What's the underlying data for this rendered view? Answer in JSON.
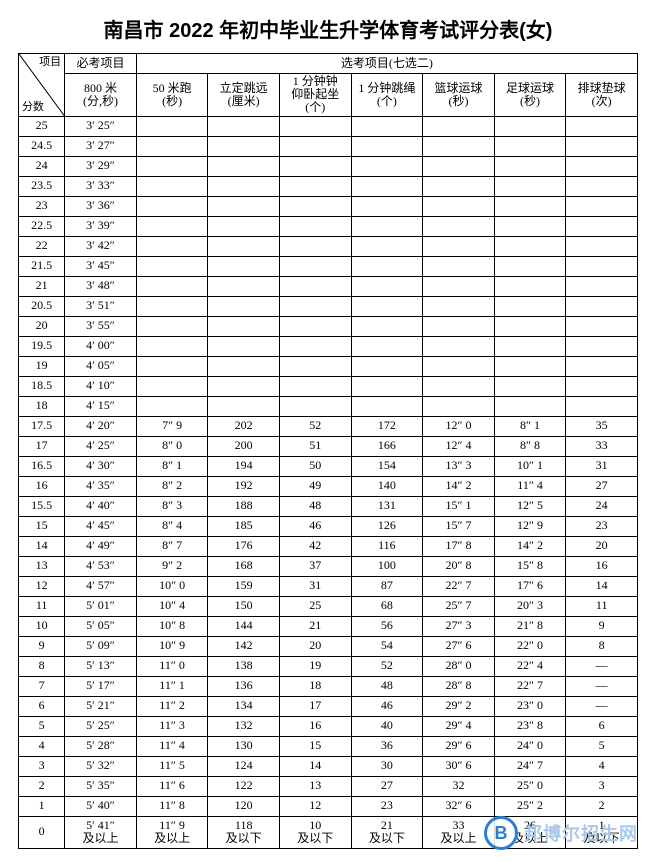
{
  "title": "南昌市 2022 年初中毕业生升学体育考试评分表(女)",
  "headers": {
    "diag_top": "项目",
    "diag_bottom": "分数",
    "required": "必考项目",
    "elective": "选考项目(七选二)",
    "col_required": "800 米\n(分,秒)",
    "col_e1": "50 米跑\n(秒)",
    "col_e2": "立定跳远\n(厘米)",
    "col_e3": "1 分钟钟\n仰卧起坐\n(个)",
    "col_e4": "1 分钟跳绳\n(个)",
    "col_e5": "篮球运球\n(秒)",
    "col_e6": "足球运球\n(秒)",
    "col_e7": "排球垫球\n(次)"
  },
  "rows": [
    {
      "score": "25",
      "req": "3′ 25″",
      "e1": "",
      "e2": "",
      "e3": "",
      "e4": "",
      "e5": "",
      "e6": "",
      "e7": ""
    },
    {
      "score": "24.5",
      "req": "3′ 27″",
      "e1": "",
      "e2": "",
      "e3": "",
      "e4": "",
      "e5": "",
      "e6": "",
      "e7": ""
    },
    {
      "score": "24",
      "req": "3′ 29″",
      "e1": "",
      "e2": "",
      "e3": "",
      "e4": "",
      "e5": "",
      "e6": "",
      "e7": ""
    },
    {
      "score": "23.5",
      "req": "3′ 33″",
      "e1": "",
      "e2": "",
      "e3": "",
      "e4": "",
      "e5": "",
      "e6": "",
      "e7": ""
    },
    {
      "score": "23",
      "req": "3′ 36″",
      "e1": "",
      "e2": "",
      "e3": "",
      "e4": "",
      "e5": "",
      "e6": "",
      "e7": ""
    },
    {
      "score": "22.5",
      "req": "3′ 39″",
      "e1": "",
      "e2": "",
      "e3": "",
      "e4": "",
      "e5": "",
      "e6": "",
      "e7": ""
    },
    {
      "score": "22",
      "req": "3′ 42″",
      "e1": "",
      "e2": "",
      "e3": "",
      "e4": "",
      "e5": "",
      "e6": "",
      "e7": ""
    },
    {
      "score": "21.5",
      "req": "3′ 45″",
      "e1": "",
      "e2": "",
      "e3": "",
      "e4": "",
      "e5": "",
      "e6": "",
      "e7": ""
    },
    {
      "score": "21",
      "req": "3′ 48″",
      "e1": "",
      "e2": "",
      "e3": "",
      "e4": "",
      "e5": "",
      "e6": "",
      "e7": ""
    },
    {
      "score": "20.5",
      "req": "3′ 51″",
      "e1": "",
      "e2": "",
      "e3": "",
      "e4": "",
      "e5": "",
      "e6": "",
      "e7": ""
    },
    {
      "score": "20",
      "req": "3′ 55″",
      "e1": "",
      "e2": "",
      "e3": "",
      "e4": "",
      "e5": "",
      "e6": "",
      "e7": ""
    },
    {
      "score": "19.5",
      "req": "4′ 00″",
      "e1": "",
      "e2": "",
      "e3": "",
      "e4": "",
      "e5": "",
      "e6": "",
      "e7": ""
    },
    {
      "score": "19",
      "req": "4′ 05″",
      "e1": "",
      "e2": "",
      "e3": "",
      "e4": "",
      "e5": "",
      "e6": "",
      "e7": ""
    },
    {
      "score": "18.5",
      "req": "4′ 10″",
      "e1": "",
      "e2": "",
      "e3": "",
      "e4": "",
      "e5": "",
      "e6": "",
      "e7": ""
    },
    {
      "score": "18",
      "req": "4′ 15″",
      "e1": "",
      "e2": "",
      "e3": "",
      "e4": "",
      "e5": "",
      "e6": "",
      "e7": ""
    },
    {
      "score": "17.5",
      "req": "4′ 20″",
      "e1": "7″ 9",
      "e2": "202",
      "e3": "52",
      "e4": "172",
      "e5": "12″ 0",
      "e6": "8″ 1",
      "e7": "35"
    },
    {
      "score": "17",
      "req": "4′ 25″",
      "e1": "8″ 0",
      "e2": "200",
      "e3": "51",
      "e4": "166",
      "e5": "12″ 4",
      "e6": "8″ 8",
      "e7": "33"
    },
    {
      "score": "16.5",
      "req": "4′ 30″",
      "e1": "8″ 1",
      "e2": "194",
      "e3": "50",
      "e4": "154",
      "e5": "13″ 3",
      "e6": "10″ 1",
      "e7": "31"
    },
    {
      "score": "16",
      "req": "4′ 35″",
      "e1": "8″ 2",
      "e2": "192",
      "e3": "49",
      "e4": "140",
      "e5": "14″ 2",
      "e6": "11″ 4",
      "e7": "27"
    },
    {
      "score": "15.5",
      "req": "4′ 40″",
      "e1": "8″ 3",
      "e2": "188",
      "e3": "48",
      "e4": "131",
      "e5": "15″ 1",
      "e6": "12″ 5",
      "e7": "24"
    },
    {
      "score": "15",
      "req": "4′ 45″",
      "e1": "8″ 4",
      "e2": "185",
      "e3": "46",
      "e4": "126",
      "e5": "15″ 7",
      "e6": "12″ 9",
      "e7": "23"
    },
    {
      "score": "14",
      "req": "4′ 49″",
      "e1": "8″ 7",
      "e2": "176",
      "e3": "42",
      "e4": "116",
      "e5": "17″ 8",
      "e6": "14″ 2",
      "e7": "20"
    },
    {
      "score": "13",
      "req": "4′ 53″",
      "e1": "9″ 2",
      "e2": "168",
      "e3": "37",
      "e4": "100",
      "e5": "20″ 8",
      "e6": "15″ 8",
      "e7": "16"
    },
    {
      "score": "12",
      "req": "4′ 57″",
      "e1": "10″ 0",
      "e2": "159",
      "e3": "31",
      "e4": "87",
      "e5": "22″ 7",
      "e6": "17″ 6",
      "e7": "14"
    },
    {
      "score": "11",
      "req": "5′ 01″",
      "e1": "10″ 4",
      "e2": "150",
      "e3": "25",
      "e4": "68",
      "e5": "25″ 7",
      "e6": "20″ 3",
      "e7": "11"
    },
    {
      "score": "10",
      "req": "5′ 05″",
      "e1": "10″ 8",
      "e2": "144",
      "e3": "21",
      "e4": "56",
      "e5": "27″ 3",
      "e6": "21″ 8",
      "e7": "9"
    },
    {
      "score": "9",
      "req": "5′ 09″",
      "e1": "10″ 9",
      "e2": "142",
      "e3": "20",
      "e4": "54",
      "e5": "27″ 6",
      "e6": "22″ 0",
      "e7": "8"
    },
    {
      "score": "8",
      "req": "5′ 13″",
      "e1": "11″ 0",
      "e2": "138",
      "e3": "19",
      "e4": "52",
      "e5": "28″ 0",
      "e6": "22″ 4",
      "e7": "—"
    },
    {
      "score": "7",
      "req": "5′ 17″",
      "e1": "11″ 1",
      "e2": "136",
      "e3": "18",
      "e4": "48",
      "e5": "28″ 8",
      "e6": "22″ 7",
      "e7": "—"
    },
    {
      "score": "6",
      "req": "5′ 21″",
      "e1": "11″ 2",
      "e2": "134",
      "e3": "17",
      "e4": "46",
      "e5": "29″ 2",
      "e6": "23″ 0",
      "e7": "—"
    },
    {
      "score": "5",
      "req": "5′ 25″",
      "e1": "11″ 3",
      "e2": "132",
      "e3": "16",
      "e4": "40",
      "e5": "29″ 4",
      "e6": "23″ 8",
      "e7": "6"
    },
    {
      "score": "4",
      "req": "5′ 28″",
      "e1": "11″ 4",
      "e2": "130",
      "e3": "15",
      "e4": "36",
      "e5": "29″ 6",
      "e6": "24″ 0",
      "e7": "5"
    },
    {
      "score": "3",
      "req": "5′ 32″",
      "e1": "11″ 5",
      "e2": "124",
      "e3": "14",
      "e4": "30",
      "e5": "30″ 6",
      "e6": "24″ 7",
      "e7": "4"
    },
    {
      "score": "2",
      "req": "5′ 35″",
      "e1": "11″ 6",
      "e2": "122",
      "e3": "13",
      "e4": "27",
      "e5": "32",
      "e6": "25″ 0",
      "e7": "3"
    },
    {
      "score": "1",
      "req": "5′ 40″",
      "e1": "11″ 8",
      "e2": "120",
      "e3": "12",
      "e4": "23",
      "e5": "32″ 6",
      "e6": "25″ 2",
      "e7": "2"
    },
    {
      "score": "0",
      "req": "5′ 41″\n及以上",
      "e1": "11″ 9\n及以上",
      "e2": "118\n及以下",
      "e3": "10\n及以下",
      "e4": "21\n及以下",
      "e5": "33\n及以上",
      "e6": "26\n及以上",
      "e7": "1\n及以下"
    }
  ],
  "watermark": {
    "logo_letter": "B",
    "text": "邦博尔招生网",
    "logo_color": "#2a7fd4",
    "text_color": "#a9c8e6"
  },
  "styling": {
    "border_color": "#000000",
    "background_color": "#ffffff",
    "title_fontsize": 20,
    "cell_fontsize": 12
  }
}
